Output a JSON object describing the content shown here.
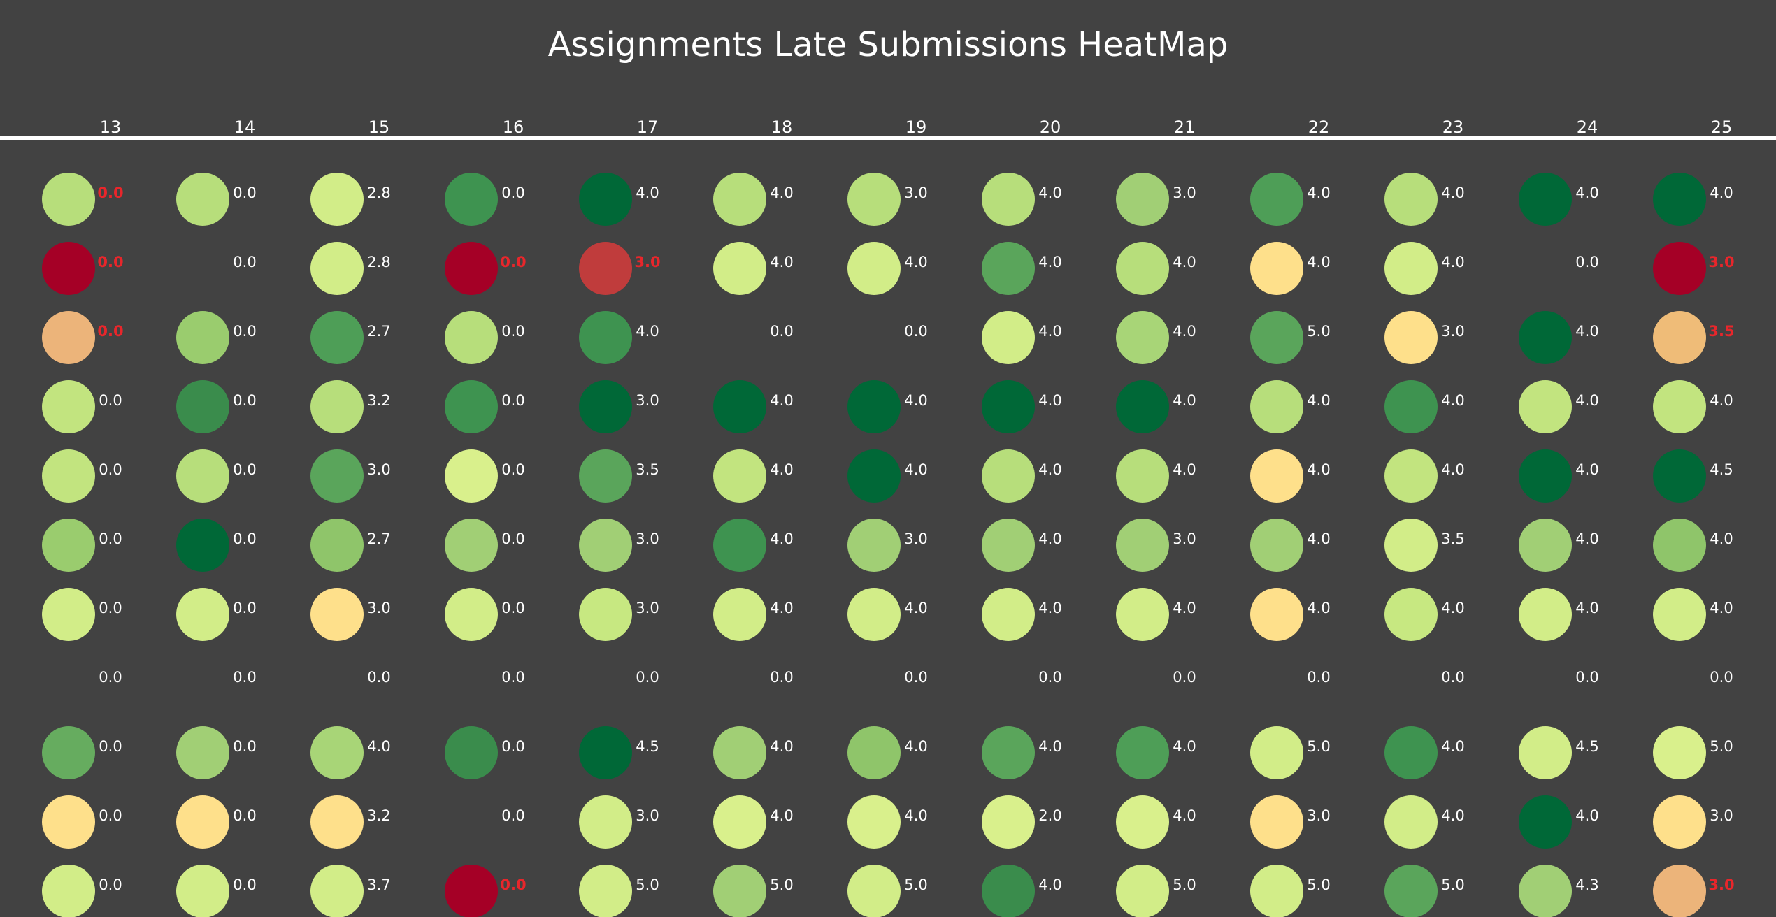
{
  "title": "Assignments Late Submissions HeatMap",
  "chart_data": {
    "type": "heatmap",
    "title": "Assignments Late Submissions HeatMap",
    "columns": [
      "13",
      "14",
      "15",
      "16",
      "17",
      "18",
      "19",
      "20",
      "21",
      "22",
      "23",
      "24",
      "25"
    ],
    "rows": [
      {
        "labels": [
          "0.0",
          "0.0",
          "2.8",
          "0.0",
          "4.0",
          "4.0",
          "3.0",
          "4.0",
          "3.0",
          "4.0",
          "4.0",
          "4.0",
          "4.0"
        ],
        "colors": [
          "#b7de7b",
          "#b7de7b",
          "#d2ed88",
          "#3e9350",
          "#006837",
          "#b7de7b",
          "#b7de7b",
          "#b7de7b",
          "#a1cf75",
          "#4e9e57",
          "#b7de7b",
          "#006837",
          "#006837"
        ],
        "late": [
          true,
          false,
          false,
          false,
          false,
          false,
          false,
          false,
          false,
          false,
          false,
          false,
          false
        ]
      },
      {
        "labels": [
          "0.0",
          "0.0",
          "2.8",
          "0.0",
          "3.0",
          "4.0",
          "4.0",
          "4.0",
          "4.0",
          "4.0",
          "4.0",
          "0.0",
          "3.0"
        ],
        "colors": [
          "#a50026",
          null,
          "#d2ed88",
          "#a50026",
          "#c03c3c",
          "#d2ed88",
          "#d2ed88",
          "#5aa55b",
          "#b7de7b",
          "#fee08b",
          "#d2ed88",
          null,
          "#a50026"
        ],
        "late": [
          true,
          false,
          false,
          true,
          true,
          false,
          false,
          false,
          false,
          false,
          false,
          false,
          true
        ]
      },
      {
        "labels": [
          "0.0",
          "0.0",
          "2.7",
          "0.0",
          "4.0",
          "0.0",
          "0.0",
          "4.0",
          "4.0",
          "5.0",
          "3.0",
          "4.0",
          "3.5"
        ],
        "colors": [
          "#ecb47a",
          "#9acc6e",
          "#4e9e57",
          "#b7de7b",
          "#3e9350",
          null,
          null,
          "#d2ed88",
          "#a8d577",
          "#5aa55b",
          "#fee08b",
          "#006837",
          "#efbc78"
        ],
        "late": [
          true,
          false,
          false,
          false,
          false,
          false,
          false,
          false,
          false,
          false,
          false,
          false,
          true
        ]
      },
      {
        "labels": [
          "0.0",
          "0.0",
          "3.2",
          "0.0",
          "3.0",
          "4.0",
          "4.0",
          "4.0",
          "4.0",
          "4.0",
          "4.0",
          "4.0",
          "4.0"
        ],
        "colors": [
          "#c2e47f",
          "#3a8c4c",
          "#b7de7b",
          "#3e9350",
          "#006837",
          "#006837",
          "#006837",
          "#006837",
          "#006837",
          "#b7de7b",
          "#3e9350",
          "#c2e47f",
          "#c2e47f"
        ],
        "late": [
          false,
          false,
          false,
          false,
          false,
          false,
          false,
          false,
          false,
          false,
          false,
          false,
          false
        ]
      },
      {
        "labels": [
          "0.0",
          "0.0",
          "3.0",
          "0.0",
          "3.5",
          "4.0",
          "4.0",
          "4.0",
          "4.0",
          "4.0",
          "4.0",
          "4.0",
          "4.5"
        ],
        "colors": [
          "#c2e47f",
          "#b7de7b",
          "#5aa55b",
          "#d9f08c",
          "#5aa55b",
          "#c2e47f",
          "#006837",
          "#b7de7b",
          "#b7de7b",
          "#fee08b",
          "#c2e47f",
          "#006837",
          "#006837"
        ],
        "late": [
          false,
          false,
          false,
          false,
          false,
          false,
          false,
          false,
          false,
          false,
          false,
          false,
          false
        ]
      },
      {
        "labels": [
          "0.0",
          "0.0",
          "2.7",
          "0.0",
          "3.0",
          "4.0",
          "3.0",
          "4.0",
          "3.0",
          "4.0",
          "3.5",
          "4.0",
          "4.0"
        ],
        "colors": [
          "#9acc6e",
          "#006837",
          "#8fc56a",
          "#a1cf75",
          "#a1cf75",
          "#3e9350",
          "#a1cf75",
          "#a1cf75",
          "#a1cf75",
          "#a1cf75",
          "#d2ed88",
          "#a1cf75",
          "#8fc56a"
        ],
        "late": [
          false,
          false,
          false,
          false,
          false,
          false,
          false,
          false,
          false,
          false,
          false,
          false,
          false
        ]
      },
      {
        "labels": [
          "0.0",
          "0.0",
          "3.0",
          "0.0",
          "3.0",
          "4.0",
          "4.0",
          "4.0",
          "4.0",
          "4.0",
          "4.0",
          "4.0",
          "4.0"
        ],
        "colors": [
          "#d2ed88",
          "#d2ed88",
          "#fee08b",
          "#d2ed88",
          "#c7e881",
          "#d2ed88",
          "#d2ed88",
          "#d2ed88",
          "#d2ed88",
          "#fee08b",
          "#c7e881",
          "#d2ed88",
          "#d2ed88"
        ],
        "late": [
          false,
          false,
          false,
          false,
          false,
          false,
          false,
          false,
          false,
          false,
          false,
          false,
          false
        ]
      },
      {
        "labels": [
          "0.0",
          "0.0",
          "0.0",
          "0.0",
          "0.0",
          "0.0",
          "0.0",
          "0.0",
          "0.0",
          "0.0",
          "0.0",
          "0.0",
          "0.0"
        ],
        "colors": [
          null,
          null,
          null,
          null,
          null,
          null,
          null,
          null,
          null,
          null,
          null,
          null,
          null
        ],
        "late": [
          false,
          false,
          false,
          false,
          false,
          false,
          false,
          false,
          false,
          false,
          false,
          false,
          false
        ]
      },
      {
        "labels": [
          "0.0",
          "0.0",
          "4.0",
          "0.0",
          "4.5",
          "4.0",
          "4.0",
          "4.0",
          "4.0",
          "5.0",
          "4.0",
          "4.5",
          "5.0"
        ],
        "colors": [
          "#66ac5f",
          "#a1cf75",
          "#a8d577",
          "#3a8c4c",
          "#006837",
          "#a1cf75",
          "#8fc56a",
          "#5aa55b",
          "#4e9e57",
          "#d2ed88",
          "#3e9350",
          "#d2ed88",
          "#d9f08c"
        ],
        "late": [
          false,
          false,
          false,
          false,
          false,
          false,
          false,
          false,
          false,
          false,
          false,
          false,
          false
        ]
      },
      {
        "labels": [
          "0.0",
          "0.0",
          "3.2",
          "0.0",
          "3.0",
          "4.0",
          "4.0",
          "2.0",
          "4.0",
          "3.0",
          "4.0",
          "4.0",
          "3.0"
        ],
        "colors": [
          "#fee08b",
          "#fee08b",
          "#fee08b",
          null,
          "#d2ed88",
          "#d9f08c",
          "#d9f08c",
          "#d9f08c",
          "#d9f08c",
          "#fee08b",
          "#d2ed88",
          "#006837",
          "#fee08b"
        ],
        "late": [
          false,
          false,
          false,
          false,
          false,
          false,
          false,
          false,
          false,
          false,
          false,
          false,
          false
        ]
      },
      {
        "labels": [
          "0.0",
          "0.0",
          "3.7",
          "0.0",
          "5.0",
          "5.0",
          "5.0",
          "4.0",
          "5.0",
          "5.0",
          "5.0",
          "4.3",
          "3.0"
        ],
        "colors": [
          "#d2ed88",
          "#d2ed88",
          "#d2ed88",
          "#a50026",
          "#d2ed88",
          "#a1cf75",
          "#d2ed88",
          "#3a8c4c",
          "#d2ed88",
          "#d2ed88",
          "#5aa55b",
          "#a1cf75",
          "#ecb47a"
        ],
        "late": [
          false,
          false,
          false,
          true,
          false,
          false,
          false,
          false,
          false,
          false,
          false,
          false,
          true
        ]
      }
    ],
    "label_color": "#ffffff",
    "late_label_color": "#e8262b",
    "separator_color": "#ffffff"
  }
}
